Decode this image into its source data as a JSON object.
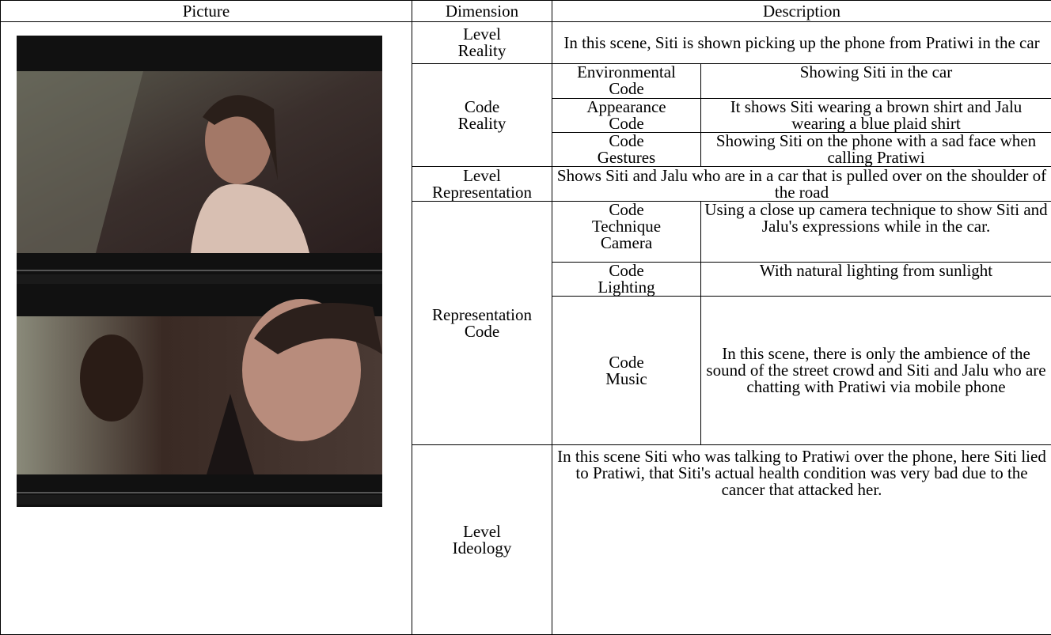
{
  "header": [
    "Picture",
    "Dimension",
    "Description"
  ],
  "rows": {
    "level_reality": {
      "dimension": "Level Reality",
      "description": "In this scene, Siti is shown picking up the phone from Pratiwi in the car"
    },
    "code_reality": {
      "dimension": "Code Reality",
      "codes": [
        {
          "name": "Environmental Code",
          "description": "Showing Siti in the car"
        },
        {
          "name": "Appearance Code",
          "description": "It shows Siti wearing a brown shirt and Jalu wearing a blue plaid shirt"
        },
        {
          "name": "Code Gestures",
          "description": "Showing Siti on the phone with a sad face when calling Pratiwi"
        }
      ]
    },
    "level_representation": {
      "dimension": "Level Representation",
      "description": "Shows Siti and Jalu who are in a car that is pulled over on the shoulder of the road"
    },
    "representation_code": {
      "dimension": "Representation Code",
      "codes": [
        {
          "name": "Code Technique Camera",
          "description": "Using a close up camera technique to show Siti and Jalu's expressions while in the car."
        },
        {
          "name": "Code Lighting",
          "description": "With natural lighting from sunlight"
        },
        {
          "name": "Code Music",
          "description": "In this scene, there is only the ambience of the sound of the street crowd and Siti and Jalu who are chatting with Pratiwi via mobile phone"
        }
      ]
    },
    "level_ideology": {
      "dimension": "Level Ideology",
      "description": "In this scene Siti who was talking to Pratiwi over the phone, here Siti lied to Pratiwi, that Siti's actual health condition was very bad due to the cancer that attacked her."
    }
  }
}
